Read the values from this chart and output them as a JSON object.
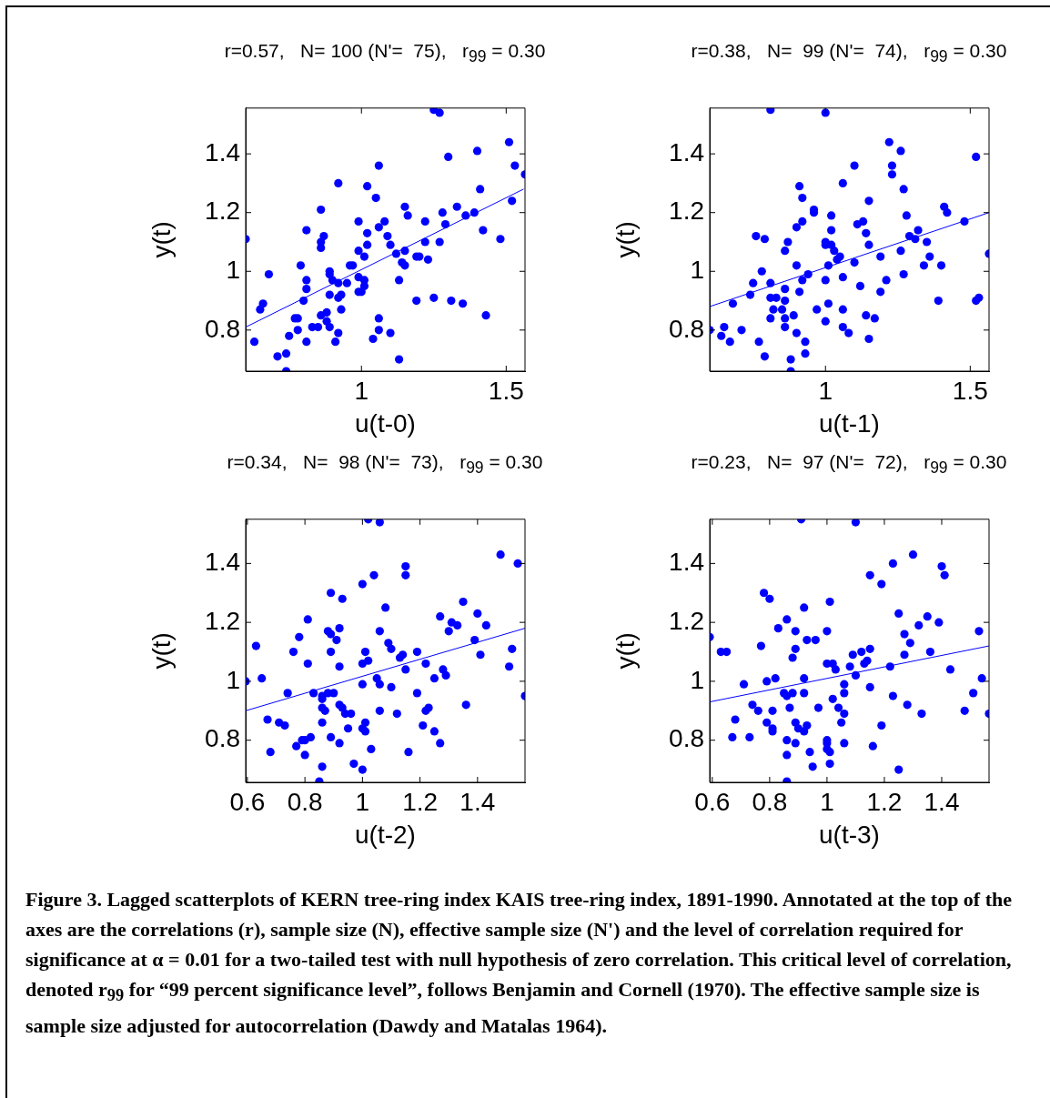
{
  "chart_data": [
    {
      "type": "scatter",
      "title": "r=0.57,   N= 100 (N'=  75),   r$_{99}$ = 0.30",
      "xlabel": "u(t-0)",
      "ylabel": "y(t)",
      "xlim": [
        0.6,
        1.565
      ],
      "ylim": [
        0.66,
        1.556
      ],
      "xticks": [
        1,
        1.5
      ],
      "yticks": [
        0.8,
        1,
        1.2,
        1.4
      ],
      "series": [
        {
          "marker": "circle",
          "color": "#0000ff",
          "x": [
            0.6,
            0.63,
            0.65,
            0.66,
            0.68,
            0.71,
            0.74,
            0.74,
            0.75,
            0.77,
            0.78,
            0.78,
            0.79,
            0.8,
            0.81,
            0.81,
            0.81,
            0.81,
            0.83,
            0.85,
            0.86,
            0.86,
            0.86,
            0.87,
            0.86,
            0.88,
            0.88,
            0.89,
            0.89,
            0.89,
            0.89,
            0.9,
            0.92,
            0.92,
            0.93,
            0.92,
            0.91,
            0.92,
            0.93,
            0.95,
            0.96,
            0.97,
            0.99,
            0.99,
            0.99,
            1.01,
            1.01,
            1.01,
            0.99,
            1.0,
            1.02,
            1.02,
            1.02,
            1.04,
            1.05,
            1.06,
            1.06,
            1.06,
            1.06,
            1.08,
            1.09,
            1.1,
            1.1,
            1.12,
            1.13,
            1.13,
            1.14,
            1.15,
            1.15,
            1.15,
            1.16,
            1.19,
            1.2,
            1.23,
            1.19,
            1.22,
            1.22,
            1.25,
            1.25,
            1.27,
            1.27,
            1.28,
            1.29,
            1.3,
            1.31,
            1.33,
            1.35,
            1.36,
            1.39,
            1.4,
            1.41,
            1.42,
            1.43,
            1.48,
            1.51,
            1.52,
            1.53,
            1.565
          ],
          "values": [
            1.11,
            0.76,
            0.87,
            0.89,
            0.99,
            0.71,
            0.72,
            0.66,
            0.78,
            0.84,
            0.84,
            0.8,
            1.02,
            0.9,
            0.94,
            0.97,
            1.14,
            0.76,
            0.81,
            0.81,
            1.21,
            0.85,
            1.1,
            1.12,
            1.08,
            0.83,
            0.86,
            0.92,
            1.0,
            0.99,
            0.81,
            0.97,
            0.96,
            0.91,
            0.92,
            0.79,
            0.76,
            1.3,
            0.87,
            0.96,
            1.02,
            1.02,
            1.17,
            1.07,
            0.98,
            1.05,
            0.97,
            0.95,
            0.93,
            0.93,
            1.29,
            1.13,
            1.09,
            0.77,
            1.25,
            1.36,
            1.15,
            0.84,
            0.8,
            1.17,
            1.12,
            1.09,
            0.79,
            1.06,
            0.7,
            0.97,
            1.03,
            1.02,
            1.07,
            1.22,
            1.19,
            1.05,
            1.05,
            1.04,
            0.9,
            1.17,
            1.1,
            0.91,
            1.55,
            1.54,
            1.1,
            1.2,
            1.16,
            1.39,
            0.9,
            1.22,
            0.89,
            1.19,
            1.2,
            1.41,
            1.28,
            1.14,
            0.85,
            1.11,
            1.44,
            1.24,
            1.36,
            1.33
          ]
        },
        {
          "type": "line",
          "marker": "none",
          "color": "#0000ff",
          "x": [
            0.6,
            1.56
          ],
          "values": [
            0.81,
            1.28
          ]
        }
      ]
    },
    {
      "type": "scatter",
      "title": "r=0.38,   N=  99 (N'=  74),   r$_{99}$ = 0.30",
      "xlabel": "u(t-1)",
      "ylabel": "y(t)",
      "xlim": [
        0.6,
        1.565
      ],
      "ylim": [
        0.66,
        1.556
      ],
      "xticks": [
        1,
        1.5
      ],
      "yticks": [
        0.8,
        1,
        1.2,
        1.4
      ],
      "series": [
        {
          "marker": "circle",
          "color": "#0000ff",
          "x": [
            0.6,
            0.64,
            0.65,
            0.67,
            0.68,
            0.71,
            0.74,
            0.75,
            0.76,
            0.77,
            0.78,
            0.79,
            0.79,
            0.81,
            0.81,
            0.81,
            0.82,
            0.81,
            0.83,
            0.85,
            0.86,
            0.86,
            0.86,
            0.86,
            0.86,
            0.87,
            0.88,
            0.88,
            0.89,
            0.9,
            0.9,
            0.9,
            0.91,
            0.91,
            0.92,
            0.92,
            0.92,
            0.93,
            0.93,
            0.94,
            0.96,
            0.96,
            0.97,
            1.0,
            1.0,
            1.0,
            1.0,
            1.0,
            1.01,
            1.01,
            1.02,
            1.02,
            1.02,
            1.03,
            1.04,
            1.05,
            1.06,
            1.06,
            1.06,
            1.06,
            1.08,
            1.1,
            1.1,
            1.11,
            1.12,
            1.13,
            1.14,
            1.14,
            1.15,
            1.15,
            1.15,
            1.17,
            1.19,
            1.19,
            1.21,
            1.22,
            1.23,
            1.23,
            1.26,
            1.26,
            1.27,
            1.27,
            1.28,
            1.29,
            1.31,
            1.32,
            1.34,
            1.35,
            1.36,
            1.39,
            1.4,
            1.41,
            1.42,
            1.48,
            1.52,
            1.52,
            1.53,
            1.565
          ],
          "values": [
            0.8,
            0.78,
            0.81,
            0.76,
            0.89,
            0.8,
            0.92,
            0.96,
            1.12,
            0.76,
            1.0,
            0.71,
            1.11,
            0.91,
            1.55,
            0.96,
            0.87,
            0.84,
            0.91,
            0.87,
            0.9,
            0.84,
            0.81,
            0.94,
            1.07,
            1.1,
            0.66,
            0.7,
            0.85,
            0.79,
            1.02,
            1.15,
            0.93,
            1.29,
            0.97,
            1.17,
            1.25,
            0.76,
            0.72,
            0.99,
            1.21,
            1.2,
            0.87,
            1.54,
            0.83,
            1.1,
            1.09,
            0.97,
            1.02,
            0.89,
            1.19,
            1.14,
            1.09,
            1.07,
            1.04,
            1.05,
            1.3,
            0.98,
            0.87,
            0.81,
            0.79,
            1.03,
            1.36,
            1.16,
            0.95,
            1.17,
            0.85,
            1.13,
            1.24,
            0.77,
            1.09,
            0.84,
            1.05,
            0.93,
            0.97,
            1.44,
            1.33,
            1.36,
            1.41,
            1.07,
            1.28,
            0.99,
            1.19,
            1.12,
            1.11,
            1.14,
            1.02,
            1.1,
            1.05,
            0.9,
            1.02,
            1.22,
            1.2,
            1.17,
            0.9,
            1.39,
            0.91,
            1.06
          ]
        },
        {
          "type": "line",
          "marker": "none",
          "color": "#0000ff",
          "x": [
            0.6,
            1.565
          ],
          "values": [
            0.88,
            1.2
          ]
        }
      ]
    },
    {
      "type": "scatter",
      "title": "r=0.34,   N=  98 (N'=  73),   r$_{99}$ = 0.30",
      "xlabel": "u(t-2)",
      "ylabel": "y(t)",
      "xlim": [
        0.594,
        1.565
      ],
      "ylim": [
        0.657,
        1.55
      ],
      "xticks": [
        0.6,
        0.8,
        1,
        1.2,
        1.4
      ],
      "yticks": [
        0.8,
        1,
        1.2,
        1.4
      ],
      "series": [
        {
          "marker": "circle",
          "color": "#0000ff",
          "x": [
            0.594,
            0.63,
            0.65,
            0.67,
            0.68,
            0.71,
            0.73,
            0.74,
            0.76,
            0.77,
            0.78,
            0.79,
            0.8,
            0.8,
            0.81,
            0.81,
            0.82,
            0.83,
            0.85,
            0.86,
            0.86,
            0.86,
            0.86,
            0.87,
            0.86,
            0.88,
            0.89,
            0.88,
            0.89,
            0.89,
            0.9,
            0.91,
            0.89,
            0.92,
            0.92,
            0.92,
            0.93,
            0.93,
            0.94,
            0.92,
            0.95,
            0.96,
            0.97,
            1.0,
            1.0,
            1.0,
            1.0,
            1.0,
            1.01,
            1.01,
            1.01,
            1.02,
            1.02,
            1.03,
            1.04,
            1.05,
            1.06,
            1.06,
            1.06,
            1.06,
            1.08,
            1.09,
            1.1,
            1.1,
            1.12,
            1.13,
            1.14,
            1.15,
            1.15,
            1.15,
            1.16,
            1.19,
            1.19,
            1.21,
            1.22,
            1.23,
            1.22,
            1.25,
            1.25,
            1.27,
            1.27,
            1.28,
            1.29,
            1.3,
            1.31,
            1.33,
            1.35,
            1.36,
            1.39,
            1.4,
            1.41,
            1.43,
            1.48,
            1.51,
            1.52,
            1.54,
            1.565
          ],
          "values": [
            1.0,
            1.12,
            1.01,
            0.87,
            0.76,
            0.86,
            0.85,
            0.96,
            1.1,
            0.78,
            1.15,
            0.8,
            0.8,
            0.75,
            1.21,
            1.06,
            0.81,
            0.96,
            0.66,
            0.71,
            0.86,
            0.91,
            0.95,
            0.9,
            0.94,
            1.17,
            1.16,
            0.96,
            1.1,
            1.3,
            0.96,
            1.14,
            0.81,
            1.18,
            1.05,
            0.92,
            1.28,
            0.91,
            0.89,
            0.79,
            0.84,
            0.89,
            0.72,
            1.33,
            1.06,
            0.99,
            0.7,
            0.84,
            0.86,
            0.83,
            1.1,
            1.55,
            1.07,
            0.77,
            1.36,
            1.01,
            1.54,
            1.17,
            0.99,
            0.9,
            1.25,
            1.13,
            1.11,
            0.98,
            0.89,
            1.08,
            1.09,
            1.39,
            1.36,
            1.04,
            0.76,
            1.1,
            0.96,
            0.85,
            0.9,
            0.91,
            1.06,
            1.01,
            0.83,
            1.22,
            0.79,
            1.04,
            1.02,
            1.17,
            1.2,
            1.19,
            1.27,
            0.92,
            1.14,
            1.23,
            1.09,
            1.19,
            1.43,
            1.05,
            1.11,
            1.4,
            0.95
          ]
        },
        {
          "type": "line",
          "marker": "none",
          "color": "#0000ff",
          "x": [
            0.594,
            1.565
          ],
          "values": [
            0.9,
            1.18
          ]
        }
      ]
    },
    {
      "type": "scatter",
      "title": "r=0.23,   N=  97 (N'=  72),   r$_{99}$ = 0.30",
      "xlabel": "u(t-3)",
      "ylabel": "y(t)",
      "xlim": [
        0.591,
        1.565
      ],
      "ylim": [
        0.657,
        1.55
      ],
      "xticks": [
        0.6,
        0.8,
        1,
        1.2,
        1.4
      ],
      "yticks": [
        0.8,
        1,
        1.2,
        1.4
      ],
      "series": [
        {
          "marker": "circle",
          "color": "#0000ff",
          "x": [
            0.591,
            0.63,
            0.65,
            0.67,
            0.68,
            0.71,
            0.73,
            0.74,
            0.76,
            0.77,
            0.78,
            0.79,
            0.79,
            0.8,
            0.81,
            0.81,
            0.81,
            0.82,
            0.83,
            0.85,
            0.86,
            0.86,
            0.86,
            0.86,
            0.86,
            0.87,
            0.88,
            0.88,
            0.89,
            0.89,
            0.89,
            0.89,
            0.9,
            0.91,
            0.92,
            0.92,
            0.92,
            0.92,
            0.93,
            0.93,
            0.94,
            0.95,
            0.96,
            0.97,
            1.0,
            1.0,
            1.0,
            1.0,
            1.0,
            1.01,
            1.01,
            1.01,
            1.02,
            1.02,
            1.03,
            1.04,
            1.05,
            1.06,
            1.06,
            1.06,
            1.06,
            1.08,
            1.09,
            1.1,
            1.1,
            1.12,
            1.13,
            1.14,
            1.15,
            1.15,
            1.15,
            1.16,
            1.19,
            1.19,
            1.22,
            1.23,
            1.23,
            1.25,
            1.25,
            1.27,
            1.27,
            1.28,
            1.29,
            1.3,
            1.32,
            1.33,
            1.35,
            1.36,
            1.39,
            1.4,
            1.41,
            1.43,
            1.48,
            1.51,
            1.53,
            1.54,
            1.565
          ],
          "values": [
            1.15,
            1.1,
            1.1,
            0.81,
            0.87,
            0.99,
            0.81,
            0.92,
            0.9,
            1.12,
            1.3,
            0.86,
            1.0,
            1.28,
            0.9,
            0.84,
            0.83,
            1.01,
            1.18,
            0.96,
            0.8,
            0.75,
            0.66,
            1.21,
            0.95,
            0.91,
            1.08,
            0.96,
            0.86,
            1.11,
            1.17,
            0.79,
            0.84,
            1.55,
            0.96,
            0.83,
            1.01,
            1.25,
            1.14,
            0.85,
            0.76,
            0.71,
            1.14,
            0.91,
            1.17,
            1.06,
            0.79,
            0.77,
            0.8,
            1.27,
            0.72,
            0.76,
            1.06,
            0.94,
            1.04,
            0.91,
            0.86,
            0.89,
            0.99,
            0.96,
            0.79,
            1.05,
            1.09,
            1.54,
            1.02,
            1.1,
            1.06,
            1.07,
            1.11,
            1.36,
            0.98,
            0.78,
            1.33,
            0.85,
            1.05,
            0.95,
            1.4,
            1.23,
            0.7,
            1.16,
            1.09,
            0.92,
            1.13,
            1.43,
            1.19,
            0.89,
            1.22,
            1.1,
            1.2,
            1.39,
            1.36,
            1.04,
            0.9,
            0.96,
            1.17,
            1.01,
            0.89
          ]
        },
        {
          "type": "line",
          "marker": "none",
          "color": "#0000ff",
          "x": [
            0.591,
            1.565
          ],
          "values": [
            0.93,
            1.12
          ]
        }
      ],
      "annotations": [
        "Figure 3.  Lagged scatterplots of KERN tree-ring index KAIS tree-ring index, 1891-1990.  Annotated at the top of the axes are the correlations (r), sample size (N), effective sample size (N') and the level of correlation required for significance at α = 0.01 for a two-tailed test with null hypothesis of zero correlation.  This critical level of correlation, denoted r$_{99}$ for “99 percent significance level”, follows Benjamin and Cornell (1970).  The effective sample size is sample size adjusted for autocorrelation (Dawdy and Matalas 1964)."
      ]
    }
  ]
}
